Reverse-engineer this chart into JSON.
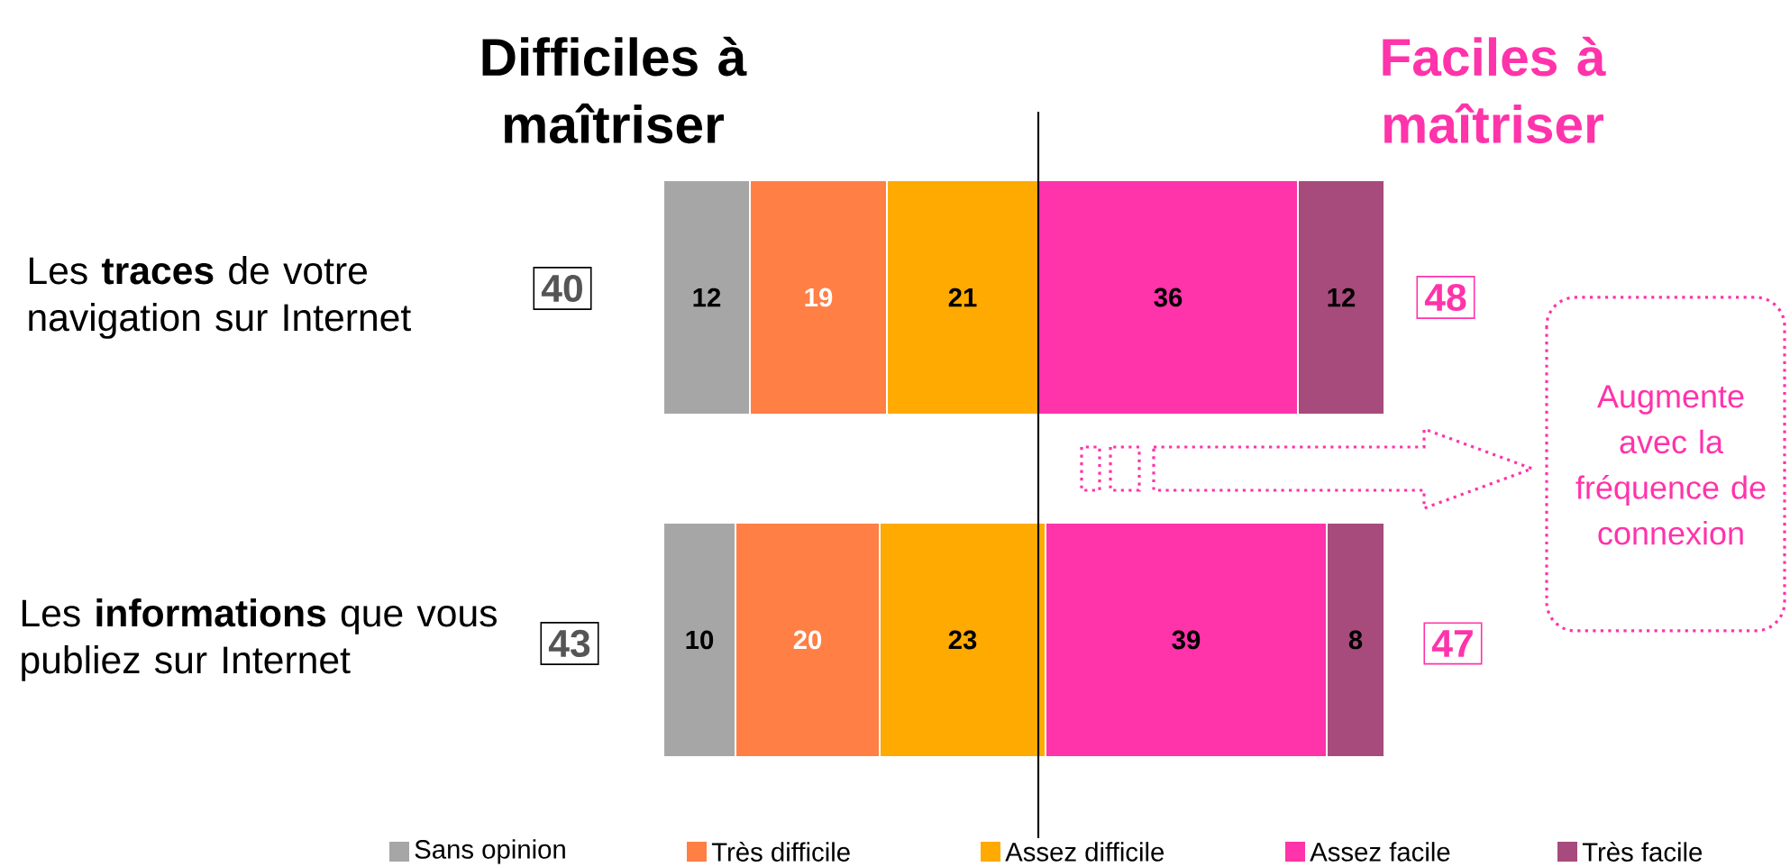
{
  "chart_data": {
    "type": "bar",
    "orientation": "horizontal",
    "stacked": true,
    "data_labels": true,
    "legend": "bottom",
    "categories": [
      "Les **traces** de votre navigation sur Internet",
      "Les **informations** que vous publiez sur Internet"
    ],
    "series": [
      {
        "name": "Sans opinion",
        "color": "#a6a6a6",
        "values": [
          12,
          10
        ]
      },
      {
        "name": "Très difficile",
        "color": "#ff7f45",
        "values": [
          19,
          20
        ]
      },
      {
        "name": "Assez difficile",
        "color": "#ffaa00",
        "values": [
          21,
          23
        ]
      },
      {
        "name": "Assez facile",
        "color": "#ff33aa",
        "values": [
          36,
          39
        ]
      },
      {
        "name": "Très facile",
        "color": "#a64b7b",
        "values": [
          12,
          8
        ]
      }
    ],
    "ref_lines": [
      {
        "axis": "x",
        "value": 52,
        "color": "#000000"
      }
    ],
    "annotations": [
      "Difficiles à maîtriser",
      "Faciles à maîtriser",
      "40",
      "48",
      "43",
      "47",
      "Augmente avec la fréquence de connexion"
    ]
  }
}
